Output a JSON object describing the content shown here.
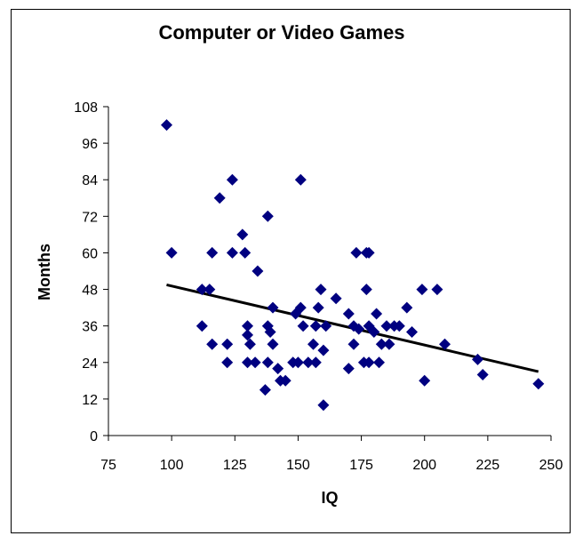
{
  "chart_data": {
    "type": "scatter",
    "title": "Computer or Video Games",
    "xlabel": "IQ",
    "ylabel": "Months",
    "xlim": [
      75,
      250
    ],
    "ylim": [
      0,
      108
    ],
    "xticks": [
      75,
      100,
      125,
      150,
      175,
      200,
      225,
      250
    ],
    "yticks": [
      0,
      12,
      24,
      36,
      48,
      60,
      72,
      84,
      96,
      108
    ],
    "grid": false,
    "legend": "none",
    "marker": "diamond",
    "marker_color": "#000080",
    "trendline_color": "#000000",
    "points": [
      [
        98,
        102
      ],
      [
        100,
        60
      ],
      [
        112,
        48
      ],
      [
        115,
        48
      ],
      [
        116,
        60
      ],
      [
        112,
        36
      ],
      [
        116,
        30
      ],
      [
        119,
        78
      ],
      [
        124,
        84
      ],
      [
        122,
        30
      ],
      [
        122,
        24
      ],
      [
        124,
        60
      ],
      [
        128,
        66
      ],
      [
        129,
        60
      ],
      [
        134,
        54
      ],
      [
        130,
        36
      ],
      [
        130,
        33
      ],
      [
        131,
        30
      ],
      [
        130,
        24
      ],
      [
        133,
        24
      ],
      [
        138,
        72
      ],
      [
        140,
        42
      ],
      [
        138,
        36
      ],
      [
        139,
        34
      ],
      [
        140,
        30
      ],
      [
        138,
        24
      ],
      [
        142,
        22
      ],
      [
        143,
        18
      ],
      [
        145,
        18
      ],
      [
        137,
        15
      ],
      [
        151,
        84
      ],
      [
        149,
        40
      ],
      [
        151,
        42
      ],
      [
        152,
        36
      ],
      [
        150,
        24
      ],
      [
        148,
        24
      ],
      [
        154,
        24
      ],
      [
        157,
        24
      ],
      [
        156,
        30
      ],
      [
        157,
        36
      ],
      [
        158,
        42
      ],
      [
        159,
        48
      ],
      [
        161,
        36
      ],
      [
        160,
        28
      ],
      [
        160,
        10
      ],
      [
        165,
        45
      ],
      [
        170,
        40
      ],
      [
        170,
        22
      ],
      [
        172,
        30
      ],
      [
        172,
        36
      ],
      [
        174,
        35
      ],
      [
        173,
        60
      ],
      [
        177,
        60
      ],
      [
        178,
        60
      ],
      [
        177,
        48
      ],
      [
        176,
        24
      ],
      [
        178,
        24
      ],
      [
        178,
        36
      ],
      [
        181,
        40
      ],
      [
        180,
        34
      ],
      [
        182,
        24
      ],
      [
        183,
        30
      ],
      [
        185,
        36
      ],
      [
        186,
        30
      ],
      [
        188,
        36
      ],
      [
        190,
        36
      ],
      [
        193,
        42
      ],
      [
        195,
        34
      ],
      [
        199,
        48
      ],
      [
        205,
        48
      ],
      [
        208,
        30
      ],
      [
        200,
        18
      ],
      [
        221,
        25
      ],
      [
        223,
        20
      ],
      [
        245,
        17
      ]
    ],
    "trendline": [
      [
        98,
        49.5
      ],
      [
        245,
        21
      ]
    ]
  }
}
